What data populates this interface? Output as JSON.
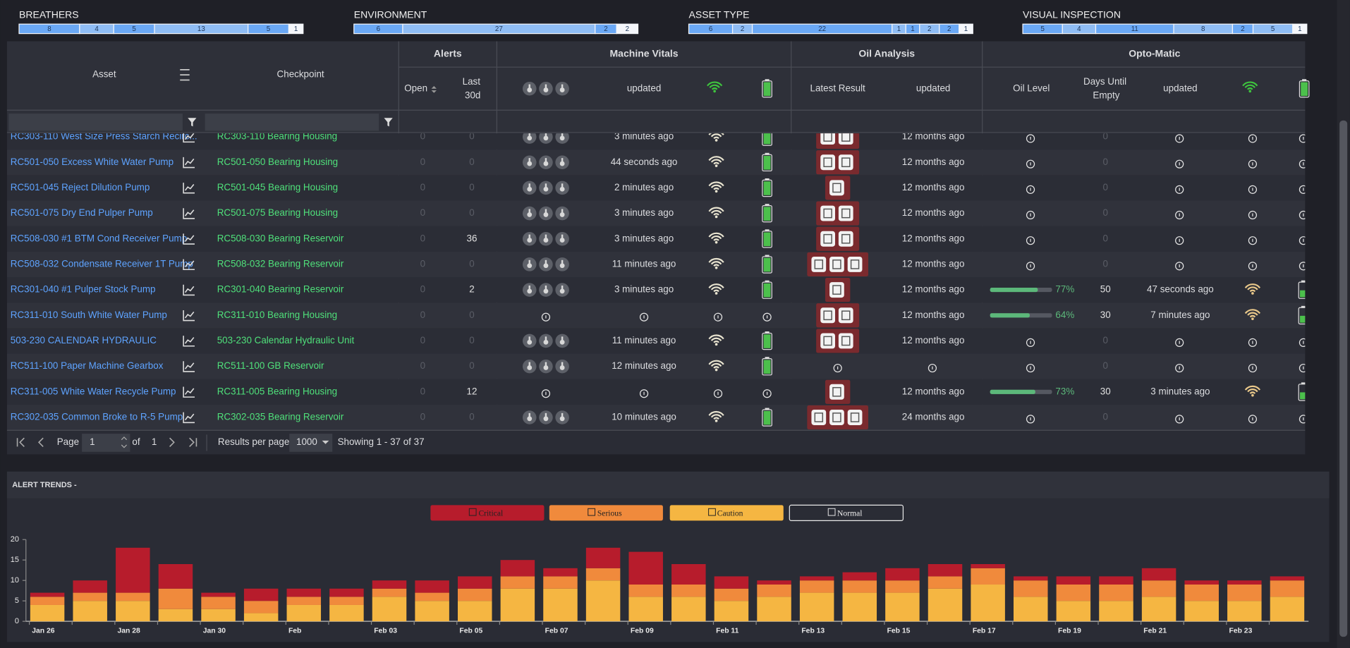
{
  "summary": [
    {
      "title": "BREATHERS",
      "segments": [
        8,
        4,
        5,
        13,
        5,
        1
      ]
    },
    {
      "title": "ENVIRONMENT",
      "segments": [
        6,
        27,
        2,
        2
      ]
    },
    {
      "title": "ASSET TYPE",
      "segments": [
        6,
        2,
        22,
        1,
        1,
        2,
        2,
        1
      ]
    },
    {
      "title": "VISUAL INSPECTION",
      "segments": [
        5,
        4,
        11,
        8,
        2,
        5,
        1
      ]
    }
  ],
  "table": {
    "groups": [
      "Alerts",
      "Machine Vitals",
      "Oil Analysis",
      "Opto-Matic"
    ],
    "columns": {
      "asset": "Asset",
      "checkpoint": "Checkpoint",
      "open": "Open",
      "last_30d": "Last 30d",
      "vitals_updated": "updated",
      "latest_result": "Latest Result",
      "oil_updated": "updated",
      "oil_level": "Oil Level",
      "days_until_empty": "Days Until Empty",
      "opto_updated": "updated"
    },
    "rows": [
      {
        "asset": "RC303-110 West Size Press Starch Recirc...",
        "checkpoint": "RC303-110 Bearing Housing",
        "open": 0,
        "last_30d": 0,
        "vitals_updated": "3 minutes ago",
        "oil_updated": "12 months ago",
        "oil_level": null,
        "days_until_empty": 0,
        "opto_updated": null
      },
      {
        "asset": "RC501-050 Excess White Water Pump",
        "checkpoint": "RC501-050 Bearing Housing",
        "open": 0,
        "last_30d": 0,
        "vitals_updated": "44 seconds ago",
        "oil_updated": "12 months ago",
        "oil_level": null,
        "days_until_empty": 0,
        "opto_updated": null
      },
      {
        "asset": "RC501-045 Reject Dilution Pump",
        "checkpoint": "RC501-045 Bearing Housing",
        "open": 0,
        "last_30d": 0,
        "vitals_updated": "2 minutes ago",
        "oil_updated": "12 months ago",
        "oil_level": null,
        "days_until_empty": 0,
        "opto_updated": null
      },
      {
        "asset": "RC501-075 Dry End Pulper Pump",
        "checkpoint": "RC501-075 Bearing Housing",
        "open": 0,
        "last_30d": 0,
        "vitals_updated": "3 minutes ago",
        "oil_updated": "12 months ago",
        "oil_level": null,
        "days_until_empty": 0,
        "opto_updated": null
      },
      {
        "asset": "RC508-030 #1 BTM Cond Receiver Pump",
        "checkpoint": "RC508-030 Bearing Reservoir",
        "open": 0,
        "last_30d": 36,
        "vitals_updated": "3 minutes ago",
        "oil_updated": "12 months ago",
        "oil_level": null,
        "days_until_empty": 0,
        "opto_updated": null
      },
      {
        "asset": "RC508-032 Condensate Receiver 1T Pump",
        "checkpoint": "RC508-032 Bearing Reservoir",
        "open": 0,
        "last_30d": 0,
        "vitals_updated": "11 minutes ago",
        "oil_updated": "12 months ago",
        "oil_level": null,
        "days_until_empty": 0,
        "opto_updated": null
      },
      {
        "asset": "RC301-040 #1 Pulper Stock Pump",
        "checkpoint": "RC301-040 Bearing Reservoir",
        "open": 0,
        "last_30d": 2,
        "vitals_updated": "3 minutes ago",
        "oil_updated": "12 months ago",
        "oil_level": {
          "value": 77,
          "label": "77%"
        },
        "days_until_empty": 50,
        "opto_updated": "47 seconds ago"
      },
      {
        "asset": "RC311-010 South White Water Pump",
        "checkpoint": "RC311-010 Bearing Housing",
        "open": 0,
        "last_30d": 0,
        "vitals_updated": null,
        "oil_updated": "12 months ago",
        "oil_level": {
          "value": 64,
          "label": "64%"
        },
        "days_until_empty": 30,
        "opto_updated": "7 minutes ago"
      },
      {
        "asset": "503-230 CALENDAR HYDRAULIC",
        "checkpoint": "503-230 Calendar Hydraulic Unit",
        "open": 0,
        "last_30d": 0,
        "vitals_updated": "11 minutes ago",
        "oil_updated": "12 months ago",
        "oil_level": null,
        "days_until_empty": 0,
        "opto_updated": null
      },
      {
        "asset": "RC511-100 Paper Machine Gearbox",
        "checkpoint": "RC511-100 GB Reservoir",
        "open": 0,
        "last_30d": 0,
        "vitals_updated": "12 minutes ago",
        "oil_updated": null,
        "oil_level": null,
        "days_until_empty": 0,
        "opto_updated": null
      },
      {
        "asset": "RC311-005 White Water Recycle Pump",
        "checkpoint": "RC311-005 Bearing Housing",
        "open": 0,
        "last_30d": 12,
        "vitals_updated": null,
        "oil_updated": "12 months ago",
        "oil_level": {
          "value": 73,
          "label": "73%"
        },
        "days_until_empty": 30,
        "opto_updated": "3 minutes ago"
      },
      {
        "asset": "RC302-035 Common Broke to R-5 Pump",
        "checkpoint": "RC302-035 Bearing Reservoir",
        "open": 0,
        "last_30d": 0,
        "vitals_updated": "10 minutes ago",
        "oil_updated": "24 months ago",
        "oil_level": null,
        "days_until_empty": 0,
        "opto_updated": null
      }
    ]
  },
  "pagination": {
    "page_label": "Page",
    "page": 1,
    "of_label": "of",
    "pages": 1,
    "per_page_label": "Results per page",
    "per_page": 1000,
    "showing": "Showing 1 - 37 of 37"
  },
  "chart_data": {
    "type": "bar",
    "stacked": true,
    "title": "ALERT TRENDS -",
    "categories": [
      "Jan 26",
      null,
      "Jan 28",
      null,
      "Jan 30",
      null,
      "Feb",
      null,
      "Feb 03",
      null,
      "Feb 05",
      null,
      "Feb 07",
      null,
      "Feb 09",
      null,
      "Feb 11",
      null,
      "Feb 13",
      null,
      "Feb 15",
      null,
      "Feb 17",
      null,
      "Feb 19",
      null,
      "Feb 21",
      null,
      "Feb 23",
      null
    ],
    "series": [
      {
        "name": "Critical",
        "color": "#b71c2c",
        "values": [
          1,
          3,
          11,
          6,
          1,
          3,
          2,
          2,
          2,
          3,
          3,
          4,
          2,
          5,
          8,
          5,
          3,
          1,
          1,
          2,
          3,
          3,
          1,
          1,
          2,
          2,
          3,
          1,
          1,
          1
        ]
      },
      {
        "name": "Serious",
        "color": "#f08a3c",
        "values": [
          2,
          2,
          2,
          5,
          3,
          3,
          2,
          2,
          2,
          2,
          3,
          3,
          3,
          3,
          3,
          3,
          3,
          3,
          3,
          3,
          3,
          3,
          4,
          4,
          4,
          4,
          4,
          4,
          4,
          4
        ]
      },
      {
        "name": "Caution",
        "color": "#f5b642",
        "values": [
          4,
          5,
          5,
          3,
          3,
          2,
          4,
          4,
          6,
          5,
          5,
          8,
          8,
          10,
          6,
          6,
          5,
          6,
          7,
          7,
          7,
          8,
          9,
          6,
          5,
          5,
          6,
          5,
          5,
          6
        ]
      },
      {
        "name": "Normal",
        "color": "#2b2d36",
        "values": [
          0,
          0,
          0,
          0,
          0,
          0,
          0,
          0,
          0,
          0,
          0,
          0,
          0,
          0,
          0,
          0,
          0,
          0,
          0,
          0,
          0,
          0,
          0,
          0,
          0,
          0,
          0,
          0,
          0,
          0
        ]
      }
    ],
    "ylim": [
      0,
      20
    ],
    "yticks": [
      0,
      5,
      10,
      15,
      20
    ],
    "legend": "top"
  }
}
